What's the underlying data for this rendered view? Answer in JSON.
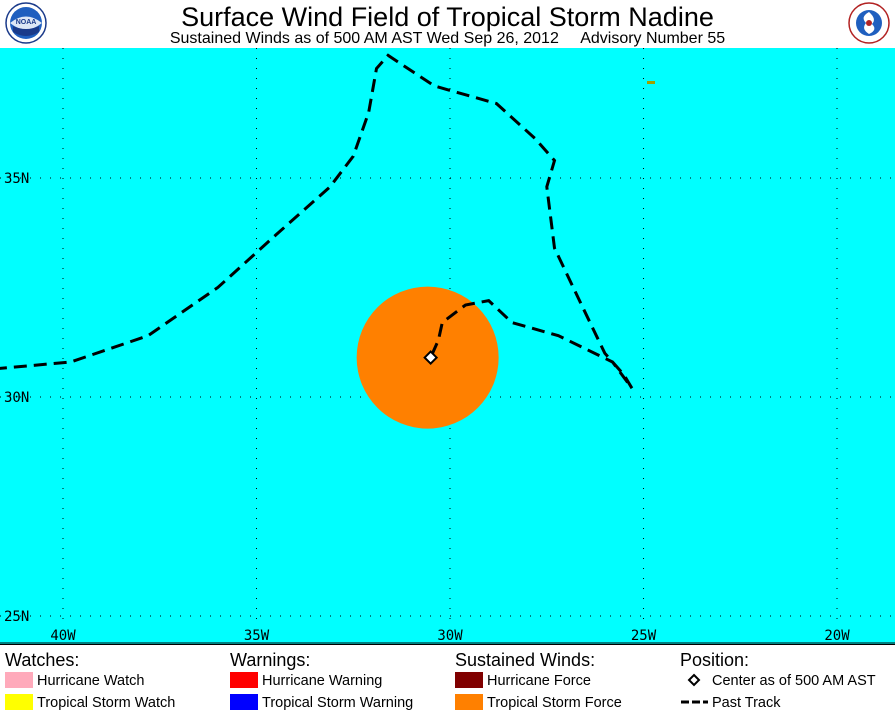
{
  "header": {
    "title": "Surface Wind Field of Tropical Storm Nadine",
    "subtitle": "Sustained Winds as of 500 AM AST Wed Sep 26, 2012     Advisory Number 55",
    "left_logo_text": "NOAA",
    "right_logo_text": "NATIONAL WEATHER SERVICE"
  },
  "map": {
    "ocean_color": "#00ffff",
    "land_color": "#a0a000",
    "lat_labels": [
      "35N",
      "30N",
      "25N"
    ],
    "lon_labels": [
      "40W",
      "35W",
      "30W",
      "25W",
      "20W"
    ],
    "storm": {
      "name": "Nadine",
      "center_lat": 30.9,
      "center_lon": -30.5,
      "tropical_storm_force_color": "#ff8000"
    },
    "past_track": [
      [
        -42.3,
        30.6
      ],
      [
        -39.8,
        30.8
      ],
      [
        -37.8,
        31.4
      ],
      [
        -36.0,
        32.5
      ],
      [
        -34.5,
        33.7
      ],
      [
        -33.1,
        34.8
      ],
      [
        -32.5,
        35.5
      ],
      [
        -32.1,
        36.5
      ],
      [
        -31.9,
        37.5
      ],
      [
        -31.6,
        37.8
      ],
      [
        -30.4,
        37.1
      ],
      [
        -28.8,
        36.7
      ],
      [
        -27.8,
        35.9
      ],
      [
        -27.3,
        35.4
      ],
      [
        -27.5,
        34.8
      ],
      [
        -27.3,
        33.4
      ],
      [
        -26.6,
        32.1
      ],
      [
        -26.0,
        31.0
      ],
      [
        -25.5,
        30.5
      ],
      [
        -25.3,
        30.2
      ],
      [
        -25.8,
        30.8
      ],
      [
        -27.2,
        31.4
      ],
      [
        -28.4,
        31.7
      ],
      [
        -29.0,
        32.2
      ],
      [
        -29.6,
        32.1
      ],
      [
        -30.2,
        31.7
      ],
      [
        -30.3,
        31.3
      ],
      [
        -30.5,
        30.9
      ]
    ]
  },
  "legend": {
    "watches": {
      "heading": "Watches:",
      "items": [
        {
          "label": "Hurricane Watch",
          "color": "#ffaabb"
        },
        {
          "label": "Tropical Storm Watch",
          "color": "#ffff00"
        }
      ]
    },
    "warnings": {
      "heading": "Warnings:",
      "items": [
        {
          "label": "Hurricane Warning",
          "color": "#ff0000"
        },
        {
          "label": "Tropical Storm Warning",
          "color": "#0000ff"
        }
      ]
    },
    "winds": {
      "heading": "Sustained Winds:",
      "items": [
        {
          "label": "Hurricane Force",
          "color": "#800000"
        },
        {
          "label": "Tropical Storm Force",
          "color": "#ff8000"
        }
      ]
    },
    "position": {
      "heading": "Position:",
      "items": [
        {
          "label": "Center as of 500 AM AST",
          "icon": "diamond-icon"
        },
        {
          "label": "Past Track",
          "icon": "dashed-line-icon"
        }
      ]
    }
  }
}
